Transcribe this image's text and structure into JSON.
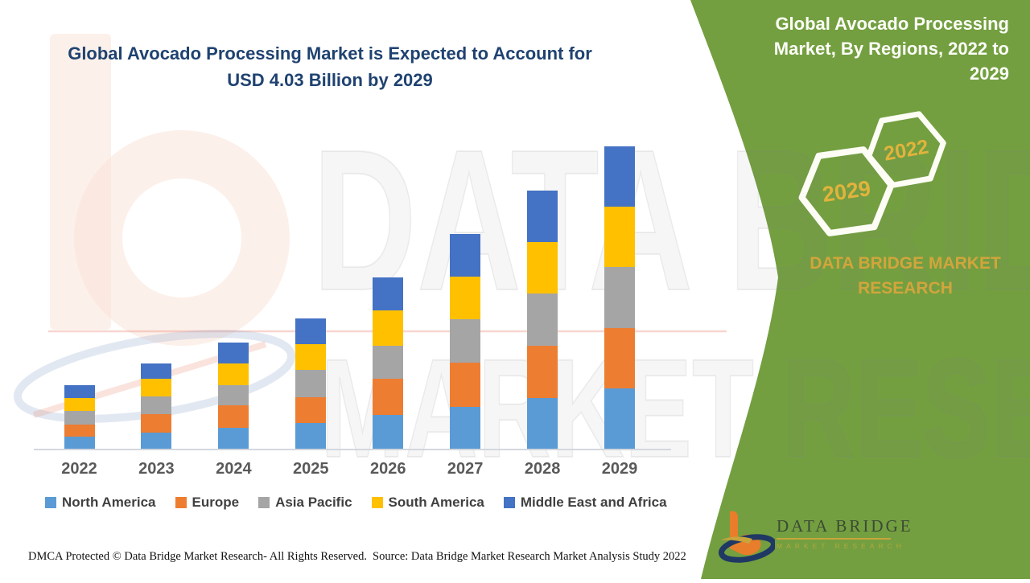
{
  "page": {
    "title_line1": "Global Avocado Processing Market is Expected to Account for",
    "title_line2": "USD 4.03 Billion by 2029"
  },
  "side_panel": {
    "heading": "Global Avocado Processing Market, By Regions, 2022 to 2029",
    "hexagons": [
      {
        "label": "2029"
      },
      {
        "label": "2022"
      }
    ],
    "brand_line1": "DATA BRIDGE MARKET",
    "brand_line2": "RESEARCH",
    "logo": {
      "name": "DATA BRIDGE",
      "subtitle": "MARKET RESEARCH"
    },
    "colors": {
      "panel_green": "#739F40",
      "gold": "#D2A53C",
      "title_navy": "#1F4270"
    }
  },
  "watermark": {
    "line1": "DATA BRIDGE",
    "line2": "MARKET RESEARCH"
  },
  "footer": {
    "left": "DMCA Protected © Data Bridge Market Research- All Rights Reserved.",
    "right": "Source: Data Bridge Market Research Market Analysis Study 2022"
  },
  "chart_data": {
    "type": "bar",
    "stacked": true,
    "title": "Global Avocado Processing Market, By Regions, 2022 to 2029",
    "unit": "USD Billion",
    "categories": [
      "2022",
      "2023",
      "2024",
      "2025",
      "2026",
      "2027",
      "2028",
      "2029"
    ],
    "series": [
      {
        "name": "North America",
        "color": "#5B9BD5",
        "values": [
          0.16,
          0.22,
          0.28,
          0.34,
          0.45,
          0.56,
          0.68,
          0.81
        ]
      },
      {
        "name": "Europe",
        "color": "#ED7D31",
        "values": [
          0.16,
          0.24,
          0.3,
          0.35,
          0.48,
          0.59,
          0.69,
          0.8
        ]
      },
      {
        "name": "Asia Pacific",
        "color": "#A5A5A5",
        "values": [
          0.19,
          0.24,
          0.27,
          0.36,
          0.45,
          0.58,
          0.7,
          0.81
        ]
      },
      {
        "name": "South America",
        "color": "#FFC000",
        "values": [
          0.17,
          0.23,
          0.29,
          0.35,
          0.47,
          0.57,
          0.69,
          0.81
        ]
      },
      {
        "name": "Middle East and Africa",
        "color": "#4472C4",
        "values": [
          0.17,
          0.21,
          0.28,
          0.34,
          0.44,
          0.57,
          0.69,
          0.8
        ]
      }
    ],
    "totals_by_year": [
      0.85,
      1.14,
      1.42,
      1.74,
      2.29,
      2.87,
      3.45,
      4.03
    ],
    "ylim": [
      0,
      4.3
    ],
    "grid": false,
    "legend_position": "bottom",
    "annotation": "USD 4.03 Billion by 2029"
  }
}
